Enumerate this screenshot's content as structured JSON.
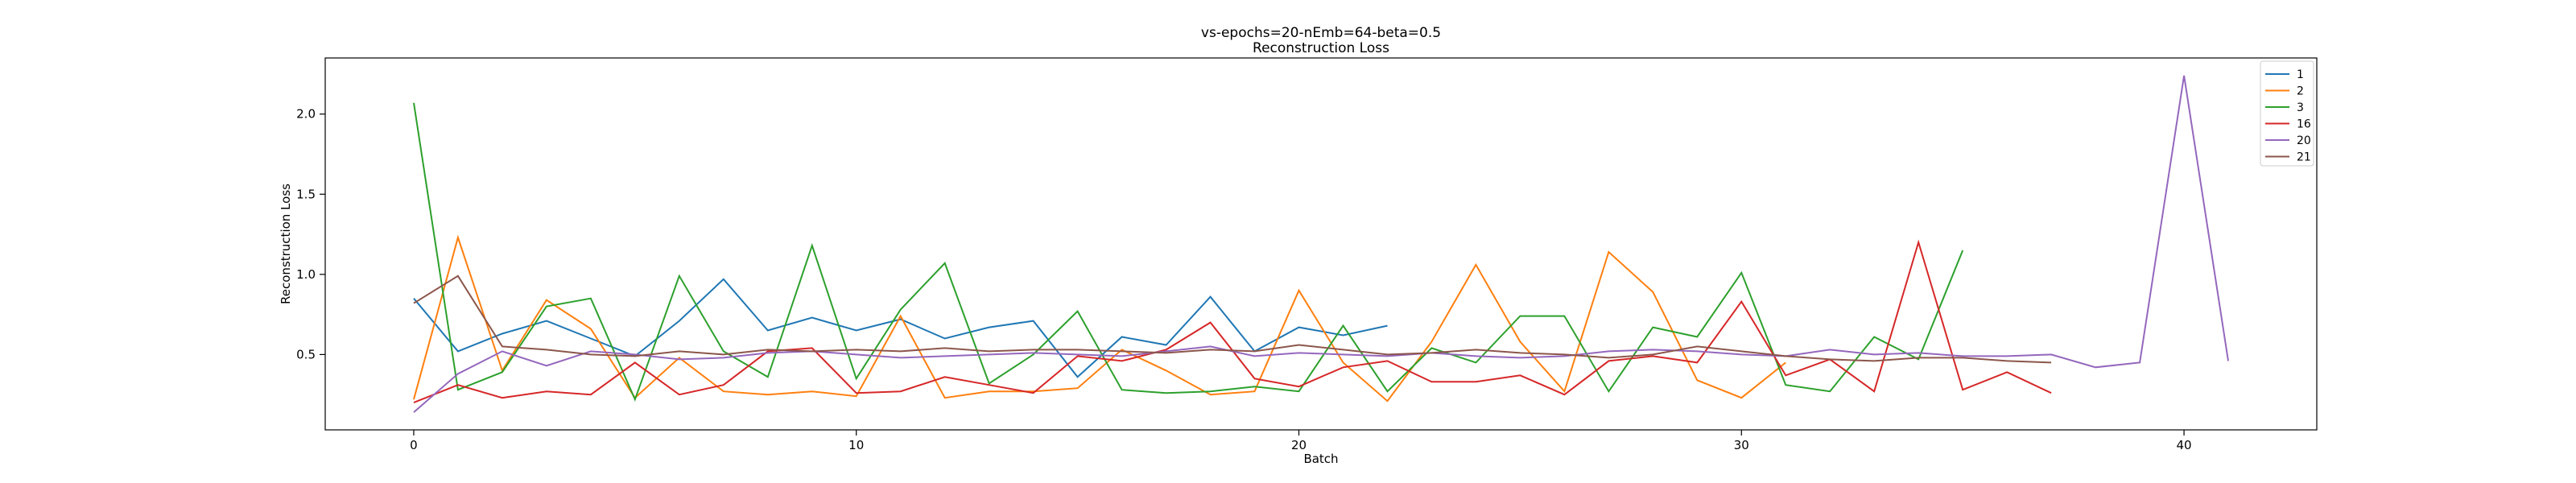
{
  "chart_data": {
    "type": "line",
    "title": "vs-epochs=20-nEmb=64-beta=0.5",
    "subtitle": "Reconstruction Loss",
    "xlabel": "Batch",
    "ylabel": "Reconstruction Loss",
    "xlim": [
      -2,
      43
    ],
    "ylim": [
      0.03,
      2.35
    ],
    "xticks": [
      0,
      10,
      20,
      30,
      40
    ],
    "yticks": [
      0.5,
      1.0,
      1.5,
      2.0
    ],
    "ytick_labels": [
      "0.5",
      "1.0",
      "1.5",
      "2.0"
    ],
    "grid": false,
    "legend_position": "top-right",
    "series": [
      {
        "name": "1",
        "color": "#1f77b4",
        "x": [
          0,
          1,
          2,
          3,
          4,
          5,
          6,
          7,
          8,
          9,
          10,
          11,
          12,
          13,
          14,
          15,
          16,
          17,
          18,
          19,
          20,
          21,
          22
        ],
        "values": [
          0.85,
          0.52,
          0.63,
          0.71,
          0.6,
          0.49,
          0.71,
          0.97,
          0.65,
          0.73,
          0.65,
          0.72,
          0.6,
          0.67,
          0.71,
          0.36,
          0.61,
          0.56,
          0.86,
          0.52,
          0.67,
          0.62,
          0.68
        ]
      },
      {
        "name": "2",
        "color": "#ff7f0e",
        "x": [
          0,
          1,
          2,
          3,
          4,
          5,
          6,
          7,
          8,
          9,
          10,
          11,
          12,
          13,
          14,
          15,
          16,
          17,
          18,
          19,
          20,
          21,
          22,
          23,
          24,
          25,
          26,
          27,
          28,
          29,
          30,
          31
        ],
        "values": [
          0.22,
          1.23,
          0.4,
          0.84,
          0.66,
          0.23,
          0.48,
          0.27,
          0.25,
          0.27,
          0.24,
          0.74,
          0.23,
          0.27,
          0.27,
          0.29,
          0.53,
          0.4,
          0.25,
          0.27,
          0.9,
          0.45,
          0.21,
          0.58,
          1.06,
          0.58,
          0.27,
          1.14,
          0.89,
          0.34,
          0.23,
          0.45
        ]
      },
      {
        "name": "3",
        "color": "#2ca02c",
        "x": [
          0,
          1,
          2,
          3,
          4,
          5,
          6,
          7,
          8,
          9,
          10,
          11,
          12,
          13,
          14,
          15,
          16,
          17,
          18,
          19,
          20,
          21,
          22,
          23,
          24,
          25,
          26,
          27,
          28,
          29,
          30,
          31,
          32,
          33,
          34,
          35
        ],
        "values": [
          2.07,
          0.28,
          0.39,
          0.8,
          0.85,
          0.22,
          0.99,
          0.52,
          0.36,
          1.18,
          0.35,
          0.78,
          1.07,
          0.32,
          0.5,
          0.77,
          0.28,
          0.26,
          0.27,
          0.3,
          0.27,
          0.68,
          0.27,
          0.54,
          0.45,
          0.74,
          0.74,
          0.27,
          0.67,
          0.61,
          1.01,
          0.31,
          0.27,
          0.61,
          0.47,
          1.15
        ]
      },
      {
        "name": "16",
        "color": "#d62728",
        "x": [
          0,
          1,
          2,
          3,
          4,
          5,
          6,
          7,
          8,
          9,
          10,
          11,
          12,
          13,
          14,
          15,
          16,
          17,
          18,
          19,
          20,
          21,
          22,
          23,
          24,
          25,
          26,
          27,
          28,
          29,
          30,
          31,
          32,
          33,
          34,
          35,
          36,
          37
        ],
        "values": [
          0.2,
          0.31,
          0.23,
          0.27,
          0.25,
          0.45,
          0.25,
          0.31,
          0.52,
          0.54,
          0.26,
          0.27,
          0.36,
          0.31,
          0.26,
          0.49,
          0.46,
          0.53,
          0.7,
          0.35,
          0.3,
          0.42,
          0.46,
          0.33,
          0.33,
          0.37,
          0.25,
          0.46,
          0.49,
          0.45,
          0.83,
          0.37,
          0.47,
          0.27,
          1.2,
          0.28,
          0.39,
          0.26
        ]
      },
      {
        "name": "20",
        "color": "#9467bd",
        "x": [
          0,
          1,
          2,
          3,
          4,
          5,
          6,
          7,
          8,
          9,
          10,
          11,
          12,
          13,
          14,
          15,
          16,
          17,
          18,
          19,
          20,
          21,
          22,
          23,
          24,
          25,
          26,
          27,
          28,
          29,
          30,
          31,
          32,
          33,
          34,
          35,
          36,
          37,
          38,
          39,
          40,
          41
        ],
        "values": [
          0.14,
          0.38,
          0.52,
          0.43,
          0.52,
          0.5,
          0.47,
          0.48,
          0.51,
          0.52,
          0.5,
          0.48,
          0.49,
          0.5,
          0.51,
          0.5,
          0.49,
          0.52,
          0.55,
          0.49,
          0.51,
          0.5,
          0.49,
          0.51,
          0.49,
          0.48,
          0.49,
          0.52,
          0.53,
          0.52,
          0.5,
          0.49,
          0.53,
          0.5,
          0.51,
          0.49,
          0.49,
          0.5,
          0.42,
          0.45,
          2.24,
          0.46
        ]
      },
      {
        "name": "21",
        "color": "#8c564b",
        "x": [
          0,
          1,
          2,
          3,
          4,
          5,
          6,
          7,
          8,
          9,
          10,
          11,
          12,
          13,
          14,
          15,
          16,
          17,
          18,
          19,
          20,
          21,
          22,
          23,
          24,
          25,
          26,
          27,
          28,
          29,
          30,
          31,
          32,
          33,
          34,
          35,
          36,
          37
        ],
        "values": [
          0.82,
          0.99,
          0.55,
          0.53,
          0.5,
          0.49,
          0.52,
          0.5,
          0.53,
          0.52,
          0.53,
          0.52,
          0.54,
          0.52,
          0.53,
          0.53,
          0.52,
          0.51,
          0.53,
          0.52,
          0.56,
          0.53,
          0.5,
          0.51,
          0.53,
          0.51,
          0.5,
          0.48,
          0.5,
          0.55,
          0.52,
          0.49,
          0.47,
          0.46,
          0.48,
          0.48,
          0.46,
          0.45
        ]
      }
    ]
  }
}
